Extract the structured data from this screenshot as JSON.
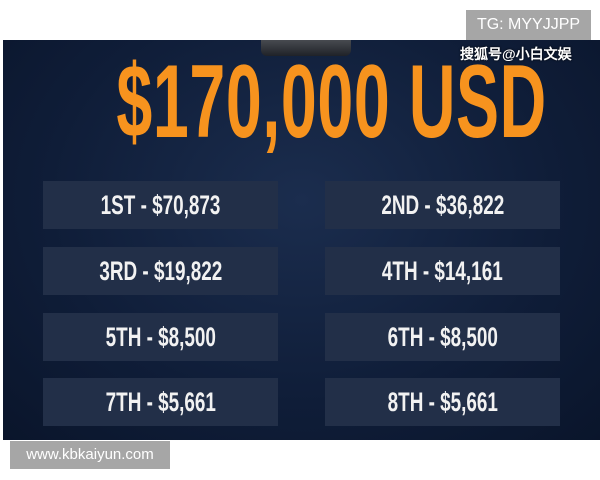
{
  "title": "$170,000 USD",
  "prizes": [
    "1ST - $70,873",
    "2ND - $36,822",
    "3RD - $19,822",
    "4TH - $14,161",
    "5TH - $8,500",
    "6TH - $8,500",
    "7TH - $5,661",
    "8TH - $5,661"
  ],
  "watermarks": {
    "tg": "TG: MYYJJPP",
    "sohu": "搜狐号@小白文娱",
    "website": "www.kbkaiyun.com"
  },
  "colors": {
    "accent": "#f7931e",
    "background": "#0f1d38",
    "box": "#222f48"
  }
}
